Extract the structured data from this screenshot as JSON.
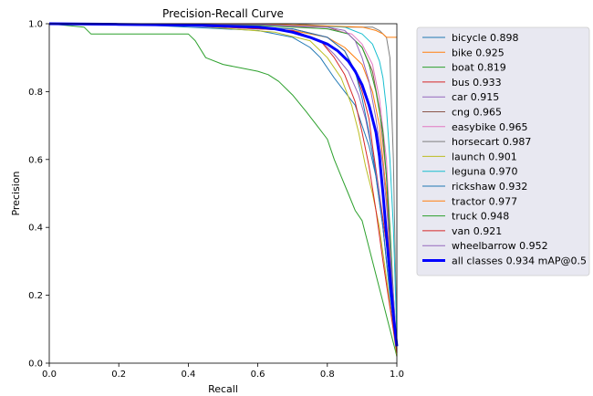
{
  "chart_data": {
    "type": "line",
    "title": "Precision-Recall Curve",
    "xlabel": "Recall",
    "ylabel": "Precision",
    "xlim": [
      0,
      1
    ],
    "ylim": [
      0,
      1
    ],
    "xticks": [
      "0.0",
      "0.2",
      "0.4",
      "0.6",
      "0.8",
      "1.0"
    ],
    "yticks": [
      "0.0",
      "0.2",
      "0.4",
      "0.6",
      "0.8",
      "1.0"
    ],
    "grid": false,
    "legend_placement": "outside-right",
    "series": [
      {
        "name": "bicycle 0.898",
        "color": "#1f77b4",
        "width": 1,
        "x": [
          0,
          0.3,
          0.6,
          0.7,
          0.75,
          0.78,
          0.8,
          0.82,
          0.85,
          0.88,
          0.9,
          0.92,
          0.94,
          0.96,
          1.0
        ],
        "y": [
          1,
          0.995,
          0.98,
          0.96,
          0.93,
          0.9,
          0.87,
          0.84,
          0.8,
          0.76,
          0.7,
          0.64,
          0.55,
          0.4,
          0.02
        ]
      },
      {
        "name": "bike 0.925",
        "color": "#ff7f0e",
        "width": 1,
        "x": [
          0,
          0.4,
          0.7,
          0.8,
          0.85,
          0.9,
          0.93,
          0.95,
          0.97,
          0.98,
          1.0
        ],
        "y": [
          1,
          0.995,
          0.98,
          0.96,
          0.93,
          0.88,
          0.8,
          0.7,
          0.5,
          0.3,
          0.03
        ]
      },
      {
        "name": "boat 0.819",
        "color": "#2ca02c",
        "width": 1,
        "x": [
          0,
          0.05,
          0.1,
          0.12,
          0.2,
          0.4,
          0.42,
          0.45,
          0.5,
          0.55,
          0.6,
          0.63,
          0.66,
          0.7,
          0.74,
          0.77,
          0.8,
          0.82,
          0.84,
          0.86,
          0.88,
          0.9,
          1.0
        ],
        "y": [
          1,
          0.995,
          0.99,
          0.97,
          0.97,
          0.97,
          0.95,
          0.9,
          0.88,
          0.87,
          0.86,
          0.85,
          0.83,
          0.79,
          0.74,
          0.7,
          0.66,
          0.6,
          0.55,
          0.5,
          0.45,
          0.42,
          0.02
        ]
      },
      {
        "name": "bus 0.933",
        "color": "#d62728",
        "width": 1,
        "x": [
          0,
          0.4,
          0.7,
          0.8,
          0.85,
          0.88,
          0.9,
          0.92,
          0.93,
          0.95,
          0.97,
          1.0
        ],
        "y": [
          1,
          0.995,
          0.985,
          0.96,
          0.92,
          0.86,
          0.8,
          0.72,
          0.64,
          0.5,
          0.35,
          0.05
        ]
      },
      {
        "name": "car 0.915",
        "color": "#9467bd",
        "width": 1,
        "x": [
          0,
          0.4,
          0.7,
          0.78,
          0.82,
          0.86,
          0.89,
          0.91,
          0.93,
          0.95,
          0.97,
          1.0
        ],
        "y": [
          1,
          0.995,
          0.98,
          0.95,
          0.91,
          0.86,
          0.79,
          0.72,
          0.62,
          0.5,
          0.3,
          0.03
        ]
      },
      {
        "name": "cng 0.965",
        "color": "#8c564b",
        "width": 1,
        "x": [
          0,
          0.5,
          0.8,
          0.86,
          0.9,
          0.93,
          0.95,
          0.97,
          0.98,
          0.99,
          1.0
        ],
        "y": [
          1,
          0.998,
          0.99,
          0.97,
          0.93,
          0.86,
          0.75,
          0.55,
          0.35,
          0.15,
          0.05
        ]
      },
      {
        "name": "easybike 0.965",
        "color": "#e377c2",
        "width": 1,
        "x": [
          0,
          0.6,
          0.8,
          0.87,
          0.9,
          0.93,
          0.95,
          0.97,
          0.98,
          0.99,
          1.0
        ],
        "y": [
          1,
          0.998,
          0.985,
          0.97,
          0.94,
          0.88,
          0.78,
          0.6,
          0.4,
          0.2,
          0.05
        ]
      },
      {
        "name": "horsecart 0.987",
        "color": "#7f7f7f",
        "width": 1,
        "x": [
          0,
          0.7,
          0.85,
          0.93,
          0.95,
          0.96,
          0.97,
          0.98,
          0.99,
          1.0
        ],
        "y": [
          1,
          1,
          0.99,
          0.99,
          0.98,
          0.97,
          0.96,
          0.9,
          0.6,
          0.06
        ]
      },
      {
        "name": "launch 0.901",
        "color": "#bcbd22",
        "width": 1,
        "x": [
          0,
          0.4,
          0.65,
          0.75,
          0.8,
          0.84,
          0.87,
          0.89,
          0.91,
          0.93,
          0.95,
          0.97,
          1.0
        ],
        "y": [
          1,
          0.995,
          0.975,
          0.95,
          0.9,
          0.84,
          0.76,
          0.68,
          0.58,
          0.5,
          0.4,
          0.25,
          0.02
        ]
      },
      {
        "name": "leguna 0.970",
        "color": "#17becf",
        "width": 1,
        "x": [
          0,
          0.6,
          0.85,
          0.9,
          0.93,
          0.95,
          0.96,
          0.97,
          0.98,
          0.99,
          1.0
        ],
        "y": [
          1,
          1,
          0.99,
          0.97,
          0.94,
          0.89,
          0.84,
          0.75,
          0.6,
          0.4,
          0.08
        ]
      },
      {
        "name": "rickshaw 0.932",
        "color": "#1f77b4",
        "width": 1,
        "x": [
          0,
          0.5,
          0.7,
          0.8,
          0.85,
          0.88,
          0.9,
          0.92,
          0.94,
          0.96,
          0.98,
          1.0
        ],
        "y": [
          1,
          0.995,
          0.985,
          0.96,
          0.92,
          0.86,
          0.78,
          0.68,
          0.55,
          0.4,
          0.2,
          0.04
        ]
      },
      {
        "name": "tractor 0.977",
        "color": "#ff7f0e",
        "width": 1,
        "x": [
          0,
          0.6,
          0.9,
          0.94,
          0.96,
          0.97,
          0.98,
          0.99,
          1.0
        ],
        "y": [
          1,
          1,
          0.99,
          0.98,
          0.97,
          0.96,
          0.96,
          0.96,
          0.96
        ]
      },
      {
        "name": "truck 0.948",
        "color": "#2ca02c",
        "width": 1,
        "x": [
          0,
          0.6,
          0.8,
          0.86,
          0.9,
          0.92,
          0.94,
          0.96,
          0.97,
          0.98,
          0.99,
          1.0
        ],
        "y": [
          1,
          0.995,
          0.985,
          0.97,
          0.93,
          0.88,
          0.8,
          0.68,
          0.55,
          0.4,
          0.2,
          0.03
        ]
      },
      {
        "name": "van 0.921",
        "color": "#d62728",
        "width": 1,
        "x": [
          0,
          0.4,
          0.7,
          0.78,
          0.82,
          0.85,
          0.88,
          0.9,
          0.92,
          0.94,
          0.96,
          1.0
        ],
        "y": [
          1,
          0.995,
          0.98,
          0.95,
          0.9,
          0.85,
          0.77,
          0.68,
          0.58,
          0.45,
          0.3,
          0.03
        ]
      },
      {
        "name": "wheelbarrow 0.952",
        "color": "#9467bd",
        "width": 1,
        "x": [
          0,
          0.6,
          0.8,
          0.85,
          0.88,
          0.9,
          0.92,
          0.94,
          0.96,
          0.98,
          1.0
        ],
        "y": [
          1,
          0.998,
          0.99,
          0.98,
          0.95,
          0.9,
          0.83,
          0.72,
          0.58,
          0.35,
          0.05
        ]
      },
      {
        "name": "all classes 0.934 mAP@0.5",
        "color": "#0000ff",
        "width": 3,
        "x": [
          0,
          0.2,
          0.4,
          0.5,
          0.6,
          0.65,
          0.7,
          0.75,
          0.8,
          0.83,
          0.86,
          0.88,
          0.9,
          0.92,
          0.94,
          0.95,
          0.96,
          0.97,
          0.98,
          0.99,
          1.0
        ],
        "y": [
          1,
          0.998,
          0.996,
          0.993,
          0.99,
          0.985,
          0.975,
          0.96,
          0.94,
          0.92,
          0.89,
          0.86,
          0.82,
          0.76,
          0.68,
          0.61,
          0.5,
          0.38,
          0.26,
          0.14,
          0.05
        ]
      }
    ]
  }
}
